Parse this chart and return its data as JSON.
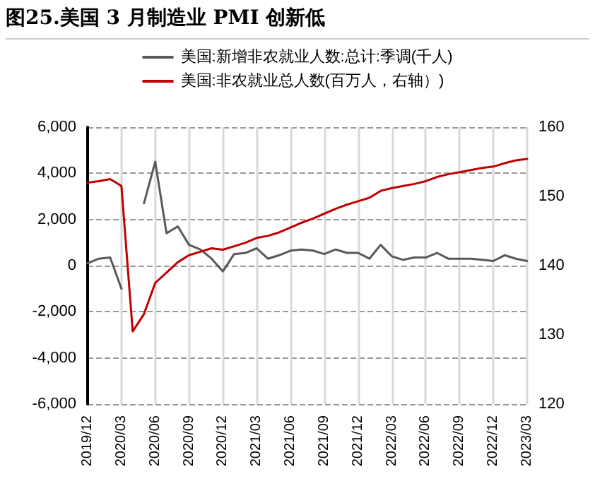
{
  "chart_data": {
    "type": "line",
    "title": "图25.美国 3 月制造业 PMI 创新低",
    "categories": [
      "2019/12",
      null,
      null,
      "2020/03",
      null,
      null,
      "2020/06",
      null,
      null,
      "2020/09",
      null,
      null,
      "2020/12",
      null,
      null,
      "2021/03",
      null,
      null,
      "2021/06",
      null,
      null,
      "2021/09",
      null,
      null,
      "2021/12",
      null,
      null,
      "2022/03",
      null,
      null,
      "2022/06",
      null,
      null,
      "2022/09",
      null,
      null,
      "2022/12",
      null,
      null,
      "2023/03"
    ],
    "series": [
      {
        "name": "美国:新增非农就业人数:总计:季调(千人)",
        "color": "#595959",
        "values": [
          100,
          300,
          350,
          -1000,
          null,
          2700,
          4500,
          1400,
          1700,
          900,
          700,
          300,
          -250,
          500,
          550,
          750,
          300,
          450,
          650,
          700,
          650,
          500,
          700,
          550,
          550,
          300,
          900,
          400,
          250,
          350,
          350,
          550,
          300,
          300,
          300,
          250,
          200,
          450,
          300,
          200
        ]
      },
      {
        "name": "美国:非农就业总人数(百万人，右轴）)",
        "color": "#c00000",
        "axis": "y2",
        "values": [
          152,
          152.2,
          152.5,
          151.5,
          130.5,
          133,
          137.5,
          139,
          140.5,
          141.5,
          142,
          142.5,
          142.3,
          142.8,
          143.3,
          144,
          144.3,
          144.8,
          145.5,
          146.2,
          146.8,
          147.5,
          148.2,
          148.8,
          149.3,
          149.8,
          150.8,
          151.2,
          151.5,
          151.8,
          152.2,
          152.8,
          153.2,
          153.5,
          153.8,
          154.1,
          154.3,
          154.8,
          155.2,
          155.4
        ]
      }
    ],
    "ylim": [
      -6000,
      6000
    ],
    "yticks": [
      {
        "value": -6000,
        "label": "-6,000"
      },
      {
        "value": -4000,
        "label": "-4,000"
      },
      {
        "value": -2000,
        "label": "-2,000"
      },
      0,
      {
        "value": 2000,
        "label": "2,000"
      },
      {
        "value": 4000,
        "label": "4,000"
      },
      {
        "value": 6000,
        "label": "6,000"
      }
    ],
    "y2lim": [
      120,
      160
    ],
    "y2ticks": [
      120,
      130,
      140,
      150,
      160
    ],
    "grid": true,
    "legend": "top",
    "marker": "none",
    "line_style": "solid"
  }
}
